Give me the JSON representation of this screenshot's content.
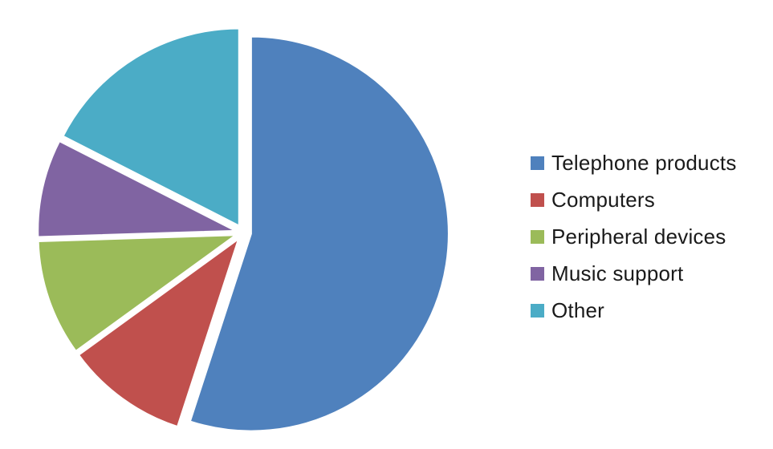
{
  "chart_data": {
    "type": "pie",
    "categories": [
      "Telephone products",
      "Computers",
      "Peripheral devices",
      "Music support",
      "Other"
    ],
    "values": [
      55,
      10,
      9.5,
      8,
      17.5
    ],
    "colors": [
      "#4F81BD",
      "#C0504D",
      "#9BBB59",
      "#8064A2",
      "#4BACC6"
    ],
    "exploded": true,
    "legend_position": "right",
    "start_angle_deg": 0,
    "direction": "clockwise"
  },
  "legend": {
    "items": [
      {
        "label": "Telephone products",
        "color": "#4F81BD"
      },
      {
        "label": "Computers",
        "color": "#C0504D"
      },
      {
        "label": "Peripheral devices",
        "color": "#9BBB59"
      },
      {
        "label": "Music support",
        "color": "#8064A2"
      },
      {
        "label": "Other",
        "color": "#4BACC6"
      }
    ]
  }
}
